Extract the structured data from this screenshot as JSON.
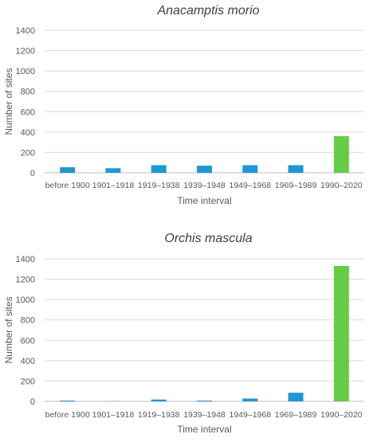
{
  "chart_data": [
    {
      "type": "bar",
      "title": "Anacamptis morio",
      "xlabel": "Time interval",
      "ylabel": "Number of sites",
      "ylim": [
        0,
        1400
      ],
      "yticks": [
        0,
        200,
        400,
        600,
        800,
        1000,
        1200,
        1400
      ],
      "grid": true,
      "categories": [
        "before 1900",
        "1901–1918",
        "1919–1938",
        "1939–1948",
        "1949–1968",
        "1969–1989",
        "1990–2020"
      ],
      "values": [
        55,
        45,
        75,
        70,
        75,
        75,
        360
      ],
      "colors": [
        "#1f97d4",
        "#1f97d4",
        "#1f97d4",
        "#1f97d4",
        "#1f97d4",
        "#1f97d4",
        "#66cc44"
      ]
    },
    {
      "type": "bar",
      "title": "Orchis mascula",
      "xlabel": "Time interval",
      "ylabel": "Number of sites",
      "ylim": [
        0,
        1400
      ],
      "yticks": [
        0,
        200,
        400,
        600,
        800,
        1000,
        1200,
        1400
      ],
      "grid": true,
      "categories": [
        "before 1900",
        "1901–1918",
        "1919–1938",
        "1939–1948",
        "1949–1968",
        "1969–1989",
        "1990–2020"
      ],
      "values": [
        8,
        2,
        18,
        8,
        28,
        85,
        1330
      ],
      "colors": [
        "#1f97d4",
        "#1f97d4",
        "#1f97d4",
        "#1f97d4",
        "#1f97d4",
        "#1f97d4",
        "#66cc44"
      ]
    }
  ]
}
